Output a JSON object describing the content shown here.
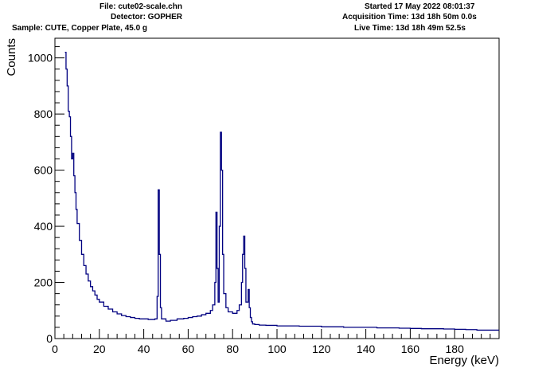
{
  "header": {
    "file": "File: cute02-scale.chn",
    "detector": "Detector: GOPHER",
    "sample": "Sample: CUTE, Copper Plate, 45.0 g",
    "started": "Started 17 May 2022 08:01:37",
    "acquisition": "Acquisition Time: 13d 18h 50m 0.0s",
    "live": "Live Time: 13d 18h 49m 52.5s"
  },
  "chart_data": {
    "type": "line",
    "xlabel": "Energy (keV)",
    "ylabel": "Counts",
    "xlim": [
      0,
      200
    ],
    "ylim": [
      0,
      1070
    ],
    "xticks": [
      "0",
      "20",
      "40",
      "60",
      "80",
      "100",
      "120",
      "140",
      "160",
      "180"
    ],
    "yticks": [
      "0",
      "200",
      "400",
      "600",
      "800",
      "1000"
    ],
    "line_color": "#000080",
    "series": [
      {
        "x": [
          4.5,
          5,
          5.5,
          6,
          6.5,
          7,
          7.5,
          8,
          8.5,
          9,
          9.5,
          10,
          11,
          12,
          13,
          14,
          15,
          16,
          17,
          18,
          19,
          20,
          22,
          24,
          26,
          28,
          30,
          32,
          34,
          36,
          38,
          40,
          42,
          44,
          45,
          46,
          46.5,
          47,
          47.5,
          48,
          50,
          52,
          55,
          58,
          60,
          62,
          64,
          66,
          68,
          70,
          71,
          72,
          72.5,
          73,
          73.5,
          74,
          74.5,
          75,
          75.5,
          76,
          77,
          78,
          80,
          82,
          83,
          84,
          84.5,
          85,
          85.5,
          86,
          86.5,
          87,
          87.5,
          88,
          88.5,
          89,
          90,
          92,
          95,
          100,
          105,
          110,
          115,
          120,
          125,
          130,
          135,
          140,
          145,
          150,
          155,
          160,
          165,
          170,
          175,
          180,
          185,
          190,
          195,
          199
        ],
        "y": [
          1020,
          960,
          900,
          810,
          790,
          720,
          640,
          660,
          580,
          520,
          460,
          410,
          350,
          300,
          260,
          230,
          205,
          185,
          170,
          155,
          140,
          130,
          115,
          105,
          95,
          88,
          82,
          78,
          75,
          72,
          70,
          70,
          68,
          68,
          70,
          150,
          530,
          300,
          110,
          70,
          62,
          65,
          70,
          72,
          75,
          78,
          80,
          85,
          90,
          100,
          120,
          200,
          450,
          250,
          130,
          400,
          735,
          600,
          300,
          160,
          110,
          95,
          90,
          100,
          120,
          200,
          300,
          365,
          250,
          130,
          130,
          175,
          110,
          75,
          60,
          52,
          50,
          48,
          47,
          45,
          45,
          44,
          44,
          42,
          42,
          40,
          40,
          40,
          38,
          38,
          37,
          36,
          35,
          35,
          34,
          33,
          32,
          30,
          30,
          30
        ]
      }
    ]
  }
}
